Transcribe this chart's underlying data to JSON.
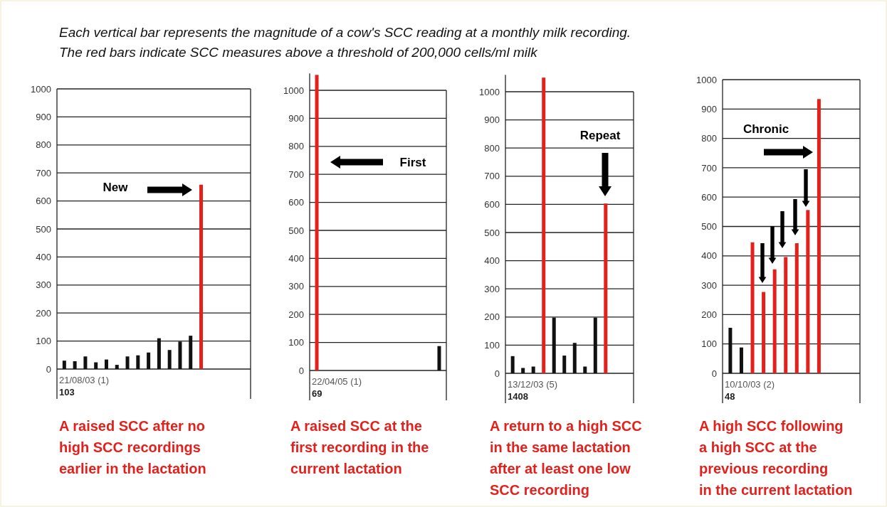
{
  "chart_data": [
    {
      "type": "bar",
      "title": "Each vertical bar represents the magnitude of a cow's SCC reading at a monthly milk recording.",
      "subtitle": "The red bars indicate SCC measures above a threshold of 200,000 cells/ml milk",
      "categories": [
        null,
        null,
        null,
        null,
        null,
        null,
        null,
        null,
        null,
        null,
        null,
        null,
        null,
        null,
        null,
        null,
        null,
        null
      ],
      "values": [
        30,
        28,
        45,
        24,
        34,
        15,
        45,
        49,
        59,
        110,
        68,
        98,
        119,
        658,
        null,
        null,
        null,
        null
      ],
      "colors": [
        "#111111",
        "#111111",
        "#111111",
        "#111111",
        "#111111",
        "#111111",
        "#111111",
        "#111111",
        "#111111",
        "#111111",
        "#111111",
        "#111111",
        "#111111",
        "#e3201b",
        null,
        null,
        null,
        null
      ],
      "ylim": [
        0,
        1000
      ],
      "yticks": [
        0,
        100,
        200,
        300,
        400,
        500,
        600,
        700,
        800,
        900,
        1000
      ],
      "grid": "y",
      "annotations": [
        "New",
        "21/08/03 (1)",
        "103",
        "A raised SCC after no\nhigh SCC recordings\nearlier in the lactation"
      ]
    },
    {
      "type": "bar",
      "categories": [
        null,
        null,
        null,
        null,
        null,
        null,
        null,
        null,
        null,
        null,
        null,
        null,
        null
      ],
      "values": [
        1055,
        null,
        null,
        null,
        null,
        null,
        null,
        null,
        null,
        null,
        null,
        null,
        87
      ],
      "colors": [
        "#e3201b",
        null,
        null,
        null,
        null,
        null,
        null,
        null,
        null,
        null,
        null,
        null,
        "#111111"
      ],
      "ylim": [
        0,
        1060
      ],
      "yticks": [
        0,
        100,
        200,
        300,
        400,
        500,
        600,
        700,
        800,
        900,
        1000
      ],
      "grid": "y",
      "annotations": [
        "First",
        "22/04/05 (1)",
        "69",
        "A raised SCC at the\nfirst recording in the\ncurrent lactation"
      ]
    },
    {
      "type": "bar",
      "categories": [
        null,
        null,
        null,
        null,
        null,
        null,
        null,
        null,
        null,
        null,
        null,
        null
      ],
      "values": [
        61,
        19,
        24,
        1050,
        198,
        63,
        108,
        24,
        198,
        603,
        null,
        null
      ],
      "colors": [
        "#111111",
        "#111111",
        "#111111",
        "#e3201b",
        "#111111",
        "#111111",
        "#111111",
        "#111111",
        "#111111",
        "#e3201b",
        null,
        null
      ],
      "ylim": [
        0,
        1060
      ],
      "yticks": [
        0,
        100,
        200,
        300,
        400,
        500,
        600,
        700,
        800,
        900,
        1000
      ],
      "grid": "y",
      "annotations": [
        "Repeat",
        "13/12/03 (5)",
        "1408",
        "A return to a high SCC\nin the same lactation\nafter at least one low\nSCC recording"
      ]
    },
    {
      "type": "bar",
      "categories": [
        null,
        null,
        null,
        null,
        null,
        null,
        null,
        null,
        null,
        null,
        null,
        null
      ],
      "values": [
        155,
        88,
        446,
        277,
        354,
        396,
        443,
        556,
        934,
        null,
        null,
        null
      ],
      "colors": [
        "#111111",
        "#111111",
        "#e3201b",
        "#e3201b",
        "#e3201b",
        "#e3201b",
        "#e3201b",
        "#e3201b",
        "#e3201b",
        null,
        null,
        null
      ],
      "ylim": [
        0,
        1000
      ],
      "yticks": [
        0,
        100,
        200,
        300,
        400,
        500,
        600,
        700,
        800,
        900,
        1000
      ],
      "grid": "y",
      "annotations": [
        "Chronic",
        "10/10/03 (2)",
        "48",
        "A high SCC following\na high SCC at the\nprevious recording\nin the current lactation"
      ]
    }
  ]
}
